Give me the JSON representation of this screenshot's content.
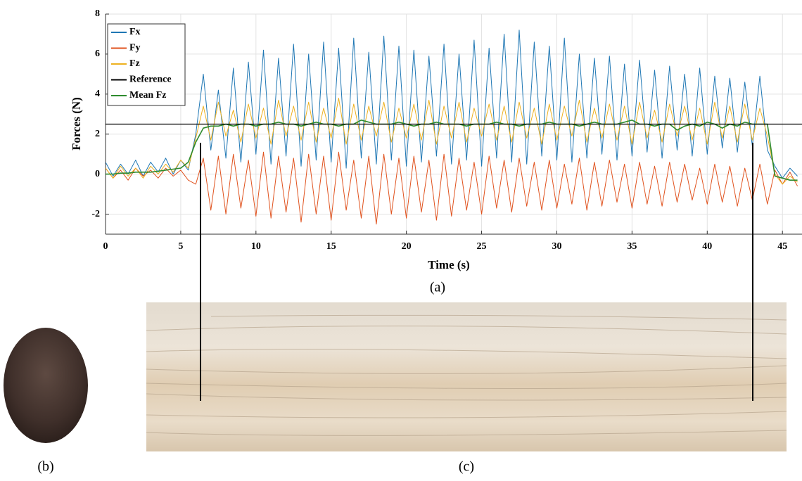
{
  "chart_data": {
    "type": "line",
    "x_label": "Time (s)",
    "y_label": "Forces (N)",
    "panel_label": "(a)",
    "xlim": [
      0,
      46.3
    ],
    "ylim": [
      -3,
      8
    ],
    "xticks": [
      0,
      5,
      10,
      15,
      20,
      25,
      30,
      35,
      40,
      45
    ],
    "yticks": [
      -2,
      0,
      2,
      4,
      6,
      8
    ],
    "grid": true,
    "legend": "upper left",
    "x": [
      0,
      0.5,
      1,
      1.5,
      2,
      2.5,
      3,
      3.5,
      4,
      4.5,
      5,
      5.5,
      6,
      6.5,
      7,
      7.5,
      8,
      8.5,
      9,
      9.5,
      10,
      10.5,
      11,
      11.5,
      12,
      12.5,
      13,
      13.5,
      14,
      14.5,
      15,
      15.5,
      16,
      16.5,
      17,
      17.5,
      18,
      18.5,
      19,
      19.5,
      20,
      20.5,
      21,
      21.5,
      22,
      22.5,
      23,
      23.5,
      24,
      24.5,
      25,
      25.5,
      26,
      26.5,
      27,
      27.5,
      28,
      28.5,
      29,
      29.5,
      30,
      30.5,
      31,
      31.5,
      32,
      32.5,
      33,
      33.5,
      34,
      34.5,
      35,
      35.5,
      36,
      36.5,
      37,
      37.5,
      38,
      38.5,
      39,
      39.5,
      40,
      40.5,
      41,
      41.5,
      42,
      42.5,
      43,
      43.5,
      44,
      44.5,
      45,
      45.5,
      46
    ],
    "series": [
      {
        "name": "Fx",
        "color": "#1f77b4",
        "values": [
          0.6,
          -0.1,
          0.5,
          0.0,
          0.7,
          -0.1,
          0.6,
          0.1,
          0.8,
          0.0,
          0.7,
          0.2,
          2.0,
          5.0,
          1.2,
          4.2,
          0.8,
          5.3,
          0.6,
          5.6,
          1.0,
          6.2,
          0.5,
          5.8,
          0.9,
          6.5,
          0.4,
          6.0,
          0.7,
          6.6,
          0.6,
          6.3,
          0.3,
          6.8,
          0.8,
          6.1,
          0.5,
          6.9,
          0.7,
          6.4,
          0.4,
          6.2,
          0.6,
          5.9,
          0.9,
          6.5,
          0.5,
          6.0,
          0.7,
          6.7,
          0.4,
          6.3,
          0.8,
          7.0,
          0.6,
          7.2,
          0.5,
          6.6,
          0.9,
          6.4,
          0.7,
          6.8,
          0.6,
          6.0,
          0.8,
          5.8,
          1.0,
          5.9,
          0.7,
          5.5,
          0.9,
          5.7,
          1.1,
          5.2,
          0.8,
          5.4,
          1.2,
          5.0,
          0.9,
          5.3,
          1.0,
          4.9,
          1.3,
          4.8,
          1.1,
          4.6,
          1.4,
          4.9,
          1.2,
          0.4,
          -0.2,
          0.3,
          -0.1
        ]
      },
      {
        "name": "Fy",
        "color": "#e0531f",
        "values": [
          0.3,
          -0.2,
          0.2,
          -0.3,
          0.3,
          -0.1,
          0.2,
          -0.2,
          0.3,
          -0.1,
          0.2,
          -0.3,
          -0.5,
          0.8,
          -1.8,
          0.9,
          -2.0,
          1.0,
          -1.7,
          0.7,
          -2.1,
          1.1,
          -2.2,
          0.9,
          -1.9,
          0.8,
          -2.4,
          1.0,
          -2.0,
          0.9,
          -2.3,
          1.1,
          -1.8,
          0.7,
          -2.2,
          0.9,
          -2.5,
          1.0,
          -2.0,
          0.8,
          -2.2,
          0.9,
          -1.9,
          0.7,
          -2.3,
          1.0,
          -2.1,
          0.8,
          -1.8,
          0.6,
          -2.0,
          0.9,
          -1.7,
          0.7,
          -1.9,
          0.8,
          -1.6,
          0.6,
          -1.8,
          0.7,
          -1.7,
          0.5,
          -1.5,
          0.8,
          -1.8,
          0.6,
          -1.6,
          0.7,
          -1.4,
          0.5,
          -1.7,
          0.6,
          -1.5,
          0.4,
          -1.6,
          0.6,
          -1.4,
          0.5,
          -1.3,
          0.3,
          -1.5,
          0.5,
          -1.4,
          0.4,
          -1.6,
          0.3,
          -1.3,
          0.5,
          -1.5,
          0.2,
          -0.5,
          0.1,
          -0.6
        ]
      },
      {
        "name": "Fz",
        "color": "#edb120",
        "values": [
          0.3,
          -0.2,
          0.4,
          -0.1,
          0.3,
          -0.2,
          0.4,
          0.0,
          0.5,
          0.1,
          0.7,
          0.3,
          1.8,
          3.4,
          1.7,
          3.6,
          1.9,
          3.2,
          1.6,
          3.5,
          1.8,
          3.3,
          1.5,
          3.7,
          1.9,
          3.4,
          1.7,
          3.6,
          1.6,
          3.3,
          1.8,
          3.8,
          1.5,
          3.5,
          1.7,
          3.4,
          1.9,
          3.6,
          1.6,
          3.3,
          1.8,
          3.5,
          1.7,
          3.7,
          1.5,
          3.4,
          1.8,
          3.6,
          1.6,
          3.3,
          1.9,
          3.5,
          1.7,
          3.4,
          1.6,
          3.6,
          1.8,
          3.3,
          1.5,
          3.5,
          1.7,
          3.4,
          1.9,
          3.7,
          1.6,
          3.3,
          1.8,
          3.5,
          1.7,
          3.4,
          1.5,
          3.6,
          1.8,
          3.2,
          1.6,
          3.5,
          1.9,
          3.4,
          1.7,
          3.3,
          1.5,
          3.6,
          1.8,
          3.4,
          1.6,
          3.5,
          1.7,
          3.3,
          1.9,
          0.0,
          -0.5,
          -0.1,
          -0.4
        ]
      },
      {
        "name": "Mean Fz",
        "color": "#2e8b2e",
        "values": [
          0.0,
          0.0,
          0.05,
          0.05,
          0.1,
          0.1,
          0.1,
          0.15,
          0.2,
          0.25,
          0.3,
          0.6,
          1.6,
          2.3,
          2.4,
          2.4,
          2.5,
          2.4,
          2.5,
          2.5,
          2.4,
          2.5,
          2.5,
          2.6,
          2.5,
          2.5,
          2.4,
          2.5,
          2.6,
          2.5,
          2.5,
          2.4,
          2.5,
          2.5,
          2.7,
          2.6,
          2.5,
          2.5,
          2.5,
          2.6,
          2.5,
          2.4,
          2.5,
          2.5,
          2.6,
          2.5,
          2.5,
          2.5,
          2.4,
          2.5,
          2.5,
          2.5,
          2.6,
          2.5,
          2.5,
          2.4,
          2.5,
          2.5,
          2.5,
          2.6,
          2.5,
          2.5,
          2.5,
          2.4,
          2.5,
          2.6,
          2.5,
          2.5,
          2.5,
          2.6,
          2.7,
          2.5,
          2.5,
          2.4,
          2.5,
          2.5,
          2.2,
          2.4,
          2.5,
          2.4,
          2.6,
          2.5,
          2.3,
          2.5,
          2.4,
          2.6,
          2.5,
          2.5,
          2.5,
          -0.1,
          -0.2,
          -0.3,
          -0.3
        ]
      }
    ],
    "reference": {
      "name": "Reference",
      "value": 2.5,
      "color": "#000000"
    },
    "images": {
      "sample_label": "(b)",
      "surface_label": "(c)"
    }
  }
}
